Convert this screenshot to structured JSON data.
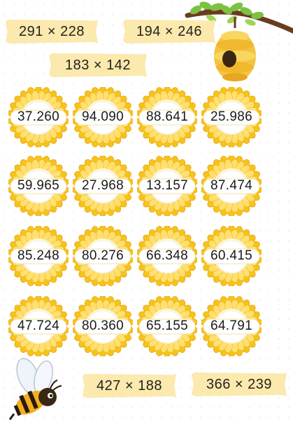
{
  "expressions": [
    {
      "text": "291 × 228"
    },
    {
      "text": "194 × 246"
    },
    {
      "text": "183 × 142"
    },
    {
      "text": "427 × 188"
    },
    {
      "text": "366 × 239"
    }
  ],
  "answers": [
    [
      "37.260",
      "94.090",
      "88.641",
      "25.986"
    ],
    [
      "59.965",
      "27.968",
      "13.157",
      "87.474"
    ],
    [
      "85.248",
      "80.276",
      "66.348",
      "60.415"
    ],
    [
      "47.724",
      "80.360",
      "65.155",
      "64.791"
    ]
  ],
  "colors": {
    "petal_outer": "#f6c21c",
    "petal_inner": "#ffe071",
    "tape": "#fbe9ad",
    "hive": "#f4c542",
    "leaf": "#7cc242",
    "branch": "#6b3b1f"
  },
  "icons": {
    "hive": "beehive-icon",
    "bee": "bee-icon",
    "flower": "sunflower-icon"
  }
}
